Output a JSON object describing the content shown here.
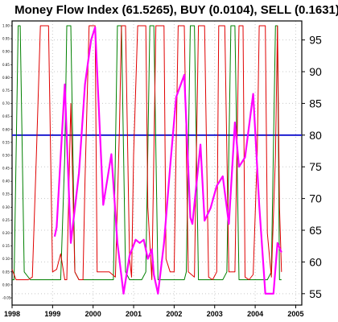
{
  "chart_data": {
    "type": "line",
    "title": "Money Flow Index (61.5265), BUY (0.0104), SELL (0.1631)",
    "left_axis": {
      "ticks": [
        "1.00",
        "0.95",
        "0.90",
        "0.85",
        "0.80",
        "0.75",
        "0.70",
        "0.65",
        "0.60",
        "0.55",
        "0.50",
        "0.45",
        "0.40",
        "0.35",
        "0.30",
        "0.25",
        "0.20",
        "0.15",
        "0.10",
        "0.05",
        "0.00",
        "-0.05"
      ],
      "range": [
        -0.05,
        1.0
      ]
    },
    "right_axis": {
      "ticks": [
        "95",
        "90",
        "85",
        "80",
        "75",
        "70",
        "65",
        "60",
        "55"
      ],
      "range": [
        53.2,
        98.0
      ]
    },
    "x_axis": {
      "ticks": [
        "1998",
        "1999",
        "2000",
        "2001",
        "2002",
        "2003",
        "2004",
        "2005"
      ],
      "range": [
        1998.0,
        2005.15
      ]
    },
    "reference_line": {
      "value": 80,
      "color": "#1f1fd0"
    },
    "grid": true,
    "series": [
      {
        "axis": "right",
        "color": "#ff00ff",
        "points": [
          [
            1999.05,
            64.0
          ],
          [
            1999.1,
            65.5
          ],
          [
            1999.3,
            88.0
          ],
          [
            1999.45,
            63.0
          ],
          [
            1999.65,
            74.0
          ],
          [
            1999.8,
            88.0
          ],
          [
            1999.95,
            95.0
          ],
          [
            2000.05,
            97.0
          ],
          [
            2000.25,
            69.0
          ],
          [
            2000.45,
            77.0
          ],
          [
            2000.6,
            63.0
          ],
          [
            2000.75,
            55.0
          ],
          [
            2000.9,
            61.0
          ],
          [
            2001.05,
            63.5
          ],
          [
            2001.15,
            63.0
          ],
          [
            2001.25,
            63.5
          ],
          [
            2001.35,
            60.5
          ],
          [
            2001.45,
            62.0
          ],
          [
            2001.5,
            58.0
          ],
          [
            2001.6,
            55.0
          ],
          [
            2001.75,
            63.0
          ],
          [
            2001.9,
            75.0
          ],
          [
            2002.05,
            86.0
          ],
          [
            2002.25,
            89.5
          ],
          [
            2002.4,
            67.0
          ],
          [
            2002.45,
            66.0
          ],
          [
            2002.65,
            78.5
          ],
          [
            2002.75,
            66.5
          ],
          [
            2002.9,
            68.5
          ],
          [
            2003.05,
            72.0
          ],
          [
            2003.2,
            73.5
          ],
          [
            2003.35,
            66.0
          ],
          [
            2003.5,
            82.0
          ],
          [
            2003.6,
            75.0
          ],
          [
            2003.75,
            76.5
          ],
          [
            2003.95,
            86.5
          ],
          [
            2004.1,
            69.0
          ],
          [
            2004.25,
            55.0
          ],
          [
            2004.45,
            55.0
          ],
          [
            2004.55,
            63.0
          ],
          [
            2004.65,
            61.5
          ]
        ]
      },
      {
        "axis": "left",
        "color": "#e00000",
        "points": [
          [
            1998.0,
            0.06
          ],
          [
            1998.1,
            0.02
          ],
          [
            1998.2,
            0.02
          ],
          [
            1998.3,
            0.02
          ],
          [
            1998.4,
            0.02
          ],
          [
            1998.5,
            0.03
          ],
          [
            1998.6,
            0.5
          ],
          [
            1998.7,
            1.0
          ],
          [
            1998.9,
            1.0
          ],
          [
            1999.0,
            0.05
          ],
          [
            1999.1,
            0.06
          ],
          [
            1999.2,
            0.12
          ],
          [
            1999.3,
            0.02
          ],
          [
            1999.35,
            0.02
          ],
          [
            1999.45,
            0.7
          ],
          [
            1999.55,
            0.05
          ],
          [
            1999.65,
            0.02
          ],
          [
            1999.75,
            0.02
          ],
          [
            1999.8,
            0.4
          ],
          [
            1999.9,
            1.0
          ],
          [
            2000.05,
            1.0
          ],
          [
            2000.1,
            0.05
          ],
          [
            2000.4,
            0.05
          ],
          [
            2000.55,
            0.03
          ],
          [
            2000.65,
            0.6
          ],
          [
            2000.7,
            1.0
          ],
          [
            2000.8,
            1.0
          ],
          [
            2000.9,
            0.1
          ],
          [
            2000.95,
            0.03
          ],
          [
            2001.0,
            0.5
          ],
          [
            2001.1,
            1.0
          ],
          [
            2001.3,
            1.0
          ],
          [
            2001.35,
            0.3
          ],
          [
            2001.45,
            0.02
          ],
          [
            2001.55,
            1.0
          ],
          [
            2001.75,
            1.0
          ],
          [
            2001.8,
            0.1
          ],
          [
            2001.9,
            0.05
          ],
          [
            2002.0,
            0.05
          ],
          [
            2002.05,
            0.55
          ],
          [
            2002.1,
            1.0
          ],
          [
            2002.25,
            1.0
          ],
          [
            2002.35,
            0.05
          ],
          [
            2002.5,
            0.03
          ],
          [
            2002.6,
            1.0
          ],
          [
            2002.75,
            1.0
          ],
          [
            2002.85,
            0.03
          ],
          [
            2002.95,
            0.02
          ],
          [
            2003.05,
            0.05
          ],
          [
            2003.1,
            1.0
          ],
          [
            2003.25,
            1.0
          ],
          [
            2003.35,
            0.05
          ],
          [
            2003.5,
            0.05
          ],
          [
            2003.6,
            1.0
          ],
          [
            2003.7,
            1.0
          ],
          [
            2003.75,
            0.03
          ],
          [
            2003.85,
            0.02
          ],
          [
            2003.95,
            0.04
          ],
          [
            2004.05,
            0.5
          ],
          [
            2004.1,
            1.0
          ],
          [
            2004.25,
            1.0
          ],
          [
            2004.3,
            0.2
          ],
          [
            2004.4,
            0.03
          ],
          [
            2004.5,
            0.5
          ],
          [
            2004.55,
            1.0
          ],
          [
            2004.6,
            0.3
          ],
          [
            2004.65,
            0.05
          ]
        ]
      },
      {
        "axis": "left",
        "color": "#008000",
        "points": [
          [
            1998.0,
            0.02
          ],
          [
            1998.05,
            0.02
          ],
          [
            1998.15,
            1.0
          ],
          [
            1998.2,
            1.0
          ],
          [
            1998.3,
            0.05
          ],
          [
            1998.45,
            0.02
          ],
          [
            1998.6,
            0.02
          ],
          [
            1999.2,
            0.02
          ],
          [
            1999.3,
            0.5
          ],
          [
            1999.35,
            1.0
          ],
          [
            1999.45,
            1.0
          ],
          [
            1999.55,
            0.05
          ],
          [
            1999.65,
            0.02
          ],
          [
            2000.4,
            0.02
          ],
          [
            2000.5,
            0.02
          ],
          [
            2000.6,
            1.0
          ],
          [
            2000.7,
            1.0
          ],
          [
            2000.8,
            0.05
          ],
          [
            2000.9,
            0.02
          ],
          [
            2001.1,
            0.02
          ],
          [
            2001.2,
            0.02
          ],
          [
            2001.3,
            0.05
          ],
          [
            2001.4,
            1.0
          ],
          [
            2001.5,
            1.0
          ],
          [
            2001.6,
            0.02
          ],
          [
            2002.25,
            0.02
          ],
          [
            2002.3,
            0.05
          ],
          [
            2002.4,
            1.0
          ],
          [
            2002.5,
            1.0
          ],
          [
            2002.6,
            0.02
          ],
          [
            2002.8,
            0.02
          ],
          [
            2002.9,
            0.02
          ],
          [
            2003.0,
            0.02
          ],
          [
            2003.2,
            0.02
          ],
          [
            2003.3,
            0.05
          ],
          [
            2003.4,
            1.0
          ],
          [
            2003.5,
            1.0
          ],
          [
            2003.6,
            0.02
          ],
          [
            2004.3,
            0.02
          ],
          [
            2004.4,
            0.05
          ],
          [
            2004.5,
            1.0
          ],
          [
            2004.55,
            1.0
          ],
          [
            2004.6,
            0.02
          ],
          [
            2004.65,
            0.02
          ]
        ]
      }
    ]
  }
}
